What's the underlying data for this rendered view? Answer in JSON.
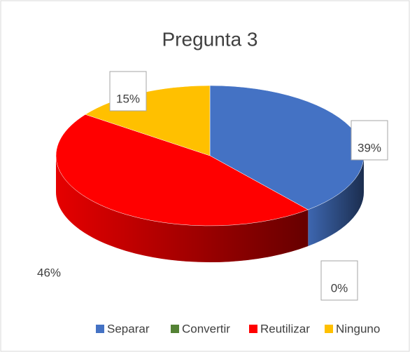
{
  "chart_data": {
    "type": "pie",
    "title": "Pregunta 3",
    "categories": [
      "Separar",
      "Convertir",
      "Reutilizar",
      "Ninguno"
    ],
    "values": [
      39,
      0,
      46,
      15
    ],
    "value_labels": [
      "39%",
      "0%",
      "46%",
      "15%"
    ],
    "colors": [
      "#4472c4",
      "#548235",
      "#ff0000",
      "#ffc000"
    ],
    "legend": "bottom"
  }
}
